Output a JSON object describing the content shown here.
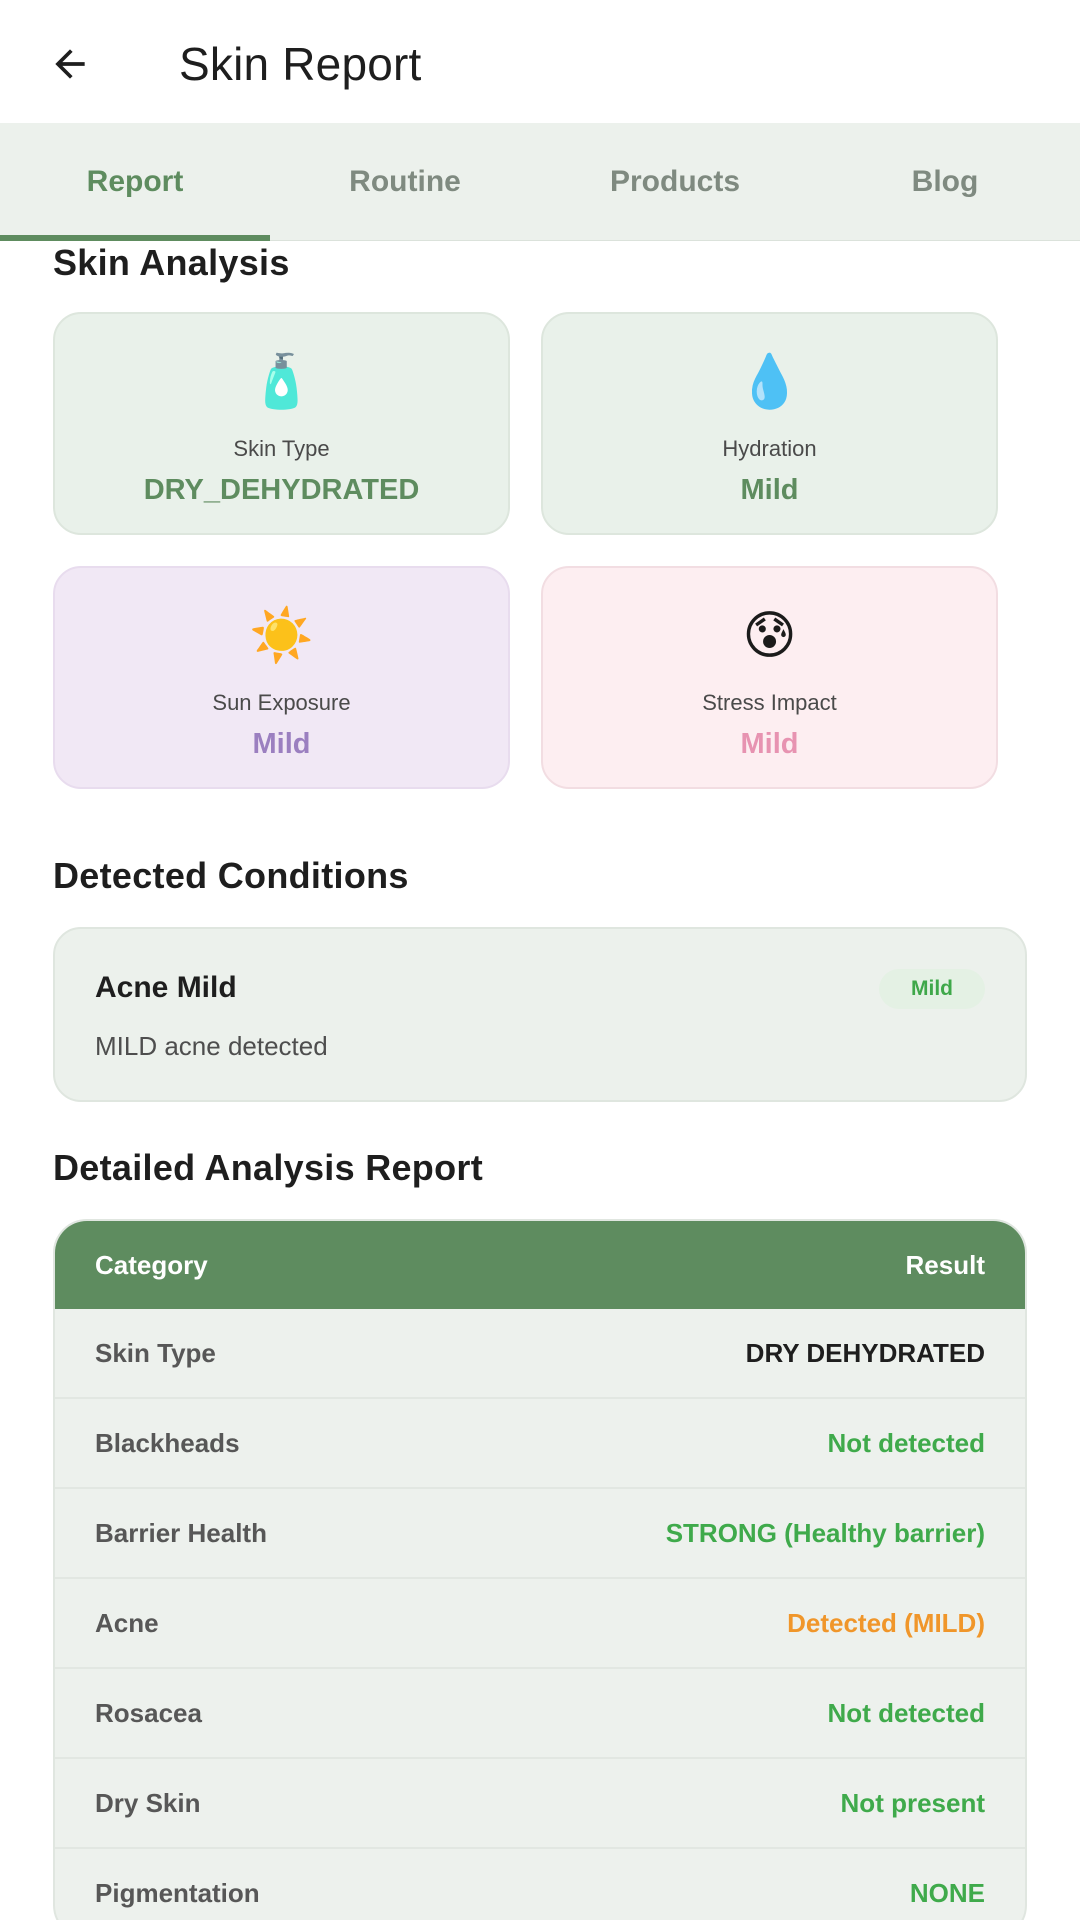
{
  "app_bar": {
    "title": "Skin Report",
    "back_icon": "arrow-back-icon"
  },
  "tabs": [
    {
      "label": "Report",
      "active": true
    },
    {
      "label": "Routine",
      "active": false
    },
    {
      "label": "Products",
      "active": false
    },
    {
      "label": "Blog",
      "active": false
    }
  ],
  "colors": {
    "primary_green": "#5e8c5f",
    "tab_bar_bg": "#ecf1ec",
    "card_green_bg": "#e9f1ea",
    "card_purple_bg": "#f1e8f5",
    "card_pink_bg": "#fdeef1",
    "status_good": "#3faa4b",
    "status_warn": "#f0962a"
  },
  "skin_analysis": {
    "title": "Skin Analysis",
    "cards": [
      {
        "icon": "lotion-bottle-icon",
        "emoji": "🧴",
        "label": "Skin Type",
        "value": "DRY_DEHYDRATED",
        "theme": "green"
      },
      {
        "icon": "droplet-icon",
        "emoji": "💧",
        "label": "Hydration",
        "value": "Mild",
        "theme": "green"
      },
      {
        "icon": "sun-icon",
        "emoji": "☀️",
        "label": "Sun Exposure",
        "value": "Mild",
        "theme": "purple"
      },
      {
        "icon": "anxious-face-icon",
        "emoji": "😰",
        "label": "Stress Impact",
        "value": "Mild",
        "theme": "pink"
      }
    ]
  },
  "detected_conditions": {
    "title": "Detected Conditions",
    "items": [
      {
        "name": "Acne Mild",
        "description": "MILD acne detected",
        "severity": "Mild"
      }
    ]
  },
  "report": {
    "title": "Detailed Analysis Report",
    "headers": {
      "category": "Category",
      "result": "Result"
    },
    "rows": [
      {
        "category": "Skin Type",
        "result": "DRY DEHYDRATED",
        "status": "neutral"
      },
      {
        "category": "Blackheads",
        "result": "Not detected",
        "status": "good"
      },
      {
        "category": "Barrier Health",
        "result": "STRONG (Healthy barrier)",
        "status": "good"
      },
      {
        "category": "Acne",
        "result": "Detected (MILD)",
        "status": "warn"
      },
      {
        "category": "Rosacea",
        "result": "Not detected",
        "status": "good"
      },
      {
        "category": "Dry Skin",
        "result": "Not present",
        "status": "good"
      },
      {
        "category": "Pigmentation",
        "result": "NONE",
        "status": "good"
      }
    ]
  }
}
